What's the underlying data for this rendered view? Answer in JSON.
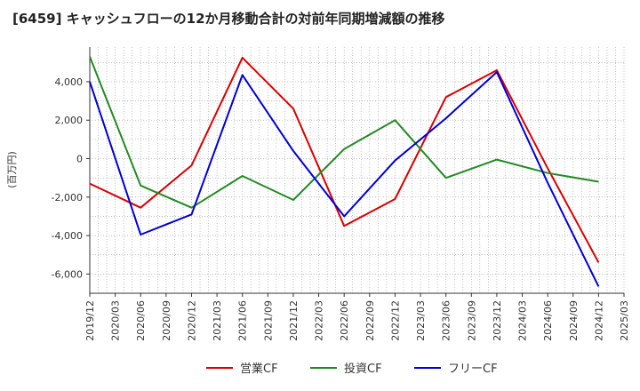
{
  "title": "[6459]  キャッシュフローの12か月移動合計の対前年同期増減額の推移",
  "chart_data": {
    "type": "line",
    "ylabel": "(百万円)",
    "ylim": [
      -7000,
      5800
    ],
    "yticks": [
      4000,
      2000,
      0,
      -2000,
      -4000,
      -6000
    ],
    "ytick_labels": [
      "4,000",
      "2,000",
      "0",
      "-2,000",
      "-4,000",
      "-6,000"
    ],
    "x_ticks": [
      "2019/12",
      "2020/03",
      "2020/06",
      "2020/09",
      "2020/12",
      "2021/03",
      "2021/06",
      "2021/09",
      "2021/12",
      "2022/03",
      "2022/06",
      "2022/09",
      "2022/12",
      "2023/03",
      "2023/06",
      "2023/09",
      "2023/12",
      "2024/03",
      "2024/06",
      "2024/09",
      "2024/12",
      "2025/03"
    ],
    "grid": true,
    "legend_position": "bottom",
    "series": [
      {
        "name": "営業CF",
        "color": "#dd0000",
        "x": [
          "2019/12",
          "2020/06",
          "2020/12",
          "2021/06",
          "2021/12",
          "2022/06",
          "2022/12",
          "2023/06",
          "2023/12",
          "2024/06",
          "2024/12"
        ],
        "values": [
          -1300,
          -2550,
          -350,
          5250,
          2600,
          -3500,
          -2100,
          3200,
          4600,
          -500,
          -5400
        ]
      },
      {
        "name": "投資CF",
        "color": "#228b22",
        "x": [
          "2019/12",
          "2020/06",
          "2020/12",
          "2021/06",
          "2021/12",
          "2022/06",
          "2022/12",
          "2023/06",
          "2023/12",
          "2024/06",
          "2024/12"
        ],
        "values": [
          5300,
          -1400,
          -2550,
          -900,
          -2150,
          500,
          2000,
          -1000,
          -50,
          -750,
          -1200
        ]
      },
      {
        "name": "フリーCF",
        "color": "#0000dd",
        "x": [
          "2019/12",
          "2020/06",
          "2020/12",
          "2021/06",
          "2021/12",
          "2022/06",
          "2022/12",
          "2023/06",
          "2023/12",
          "2024/06",
          "2024/12"
        ],
        "values": [
          4000,
          -3950,
          -2900,
          4350,
          400,
          -3000,
          -100,
          2100,
          4500,
          -1250,
          -6650
        ]
      }
    ]
  }
}
